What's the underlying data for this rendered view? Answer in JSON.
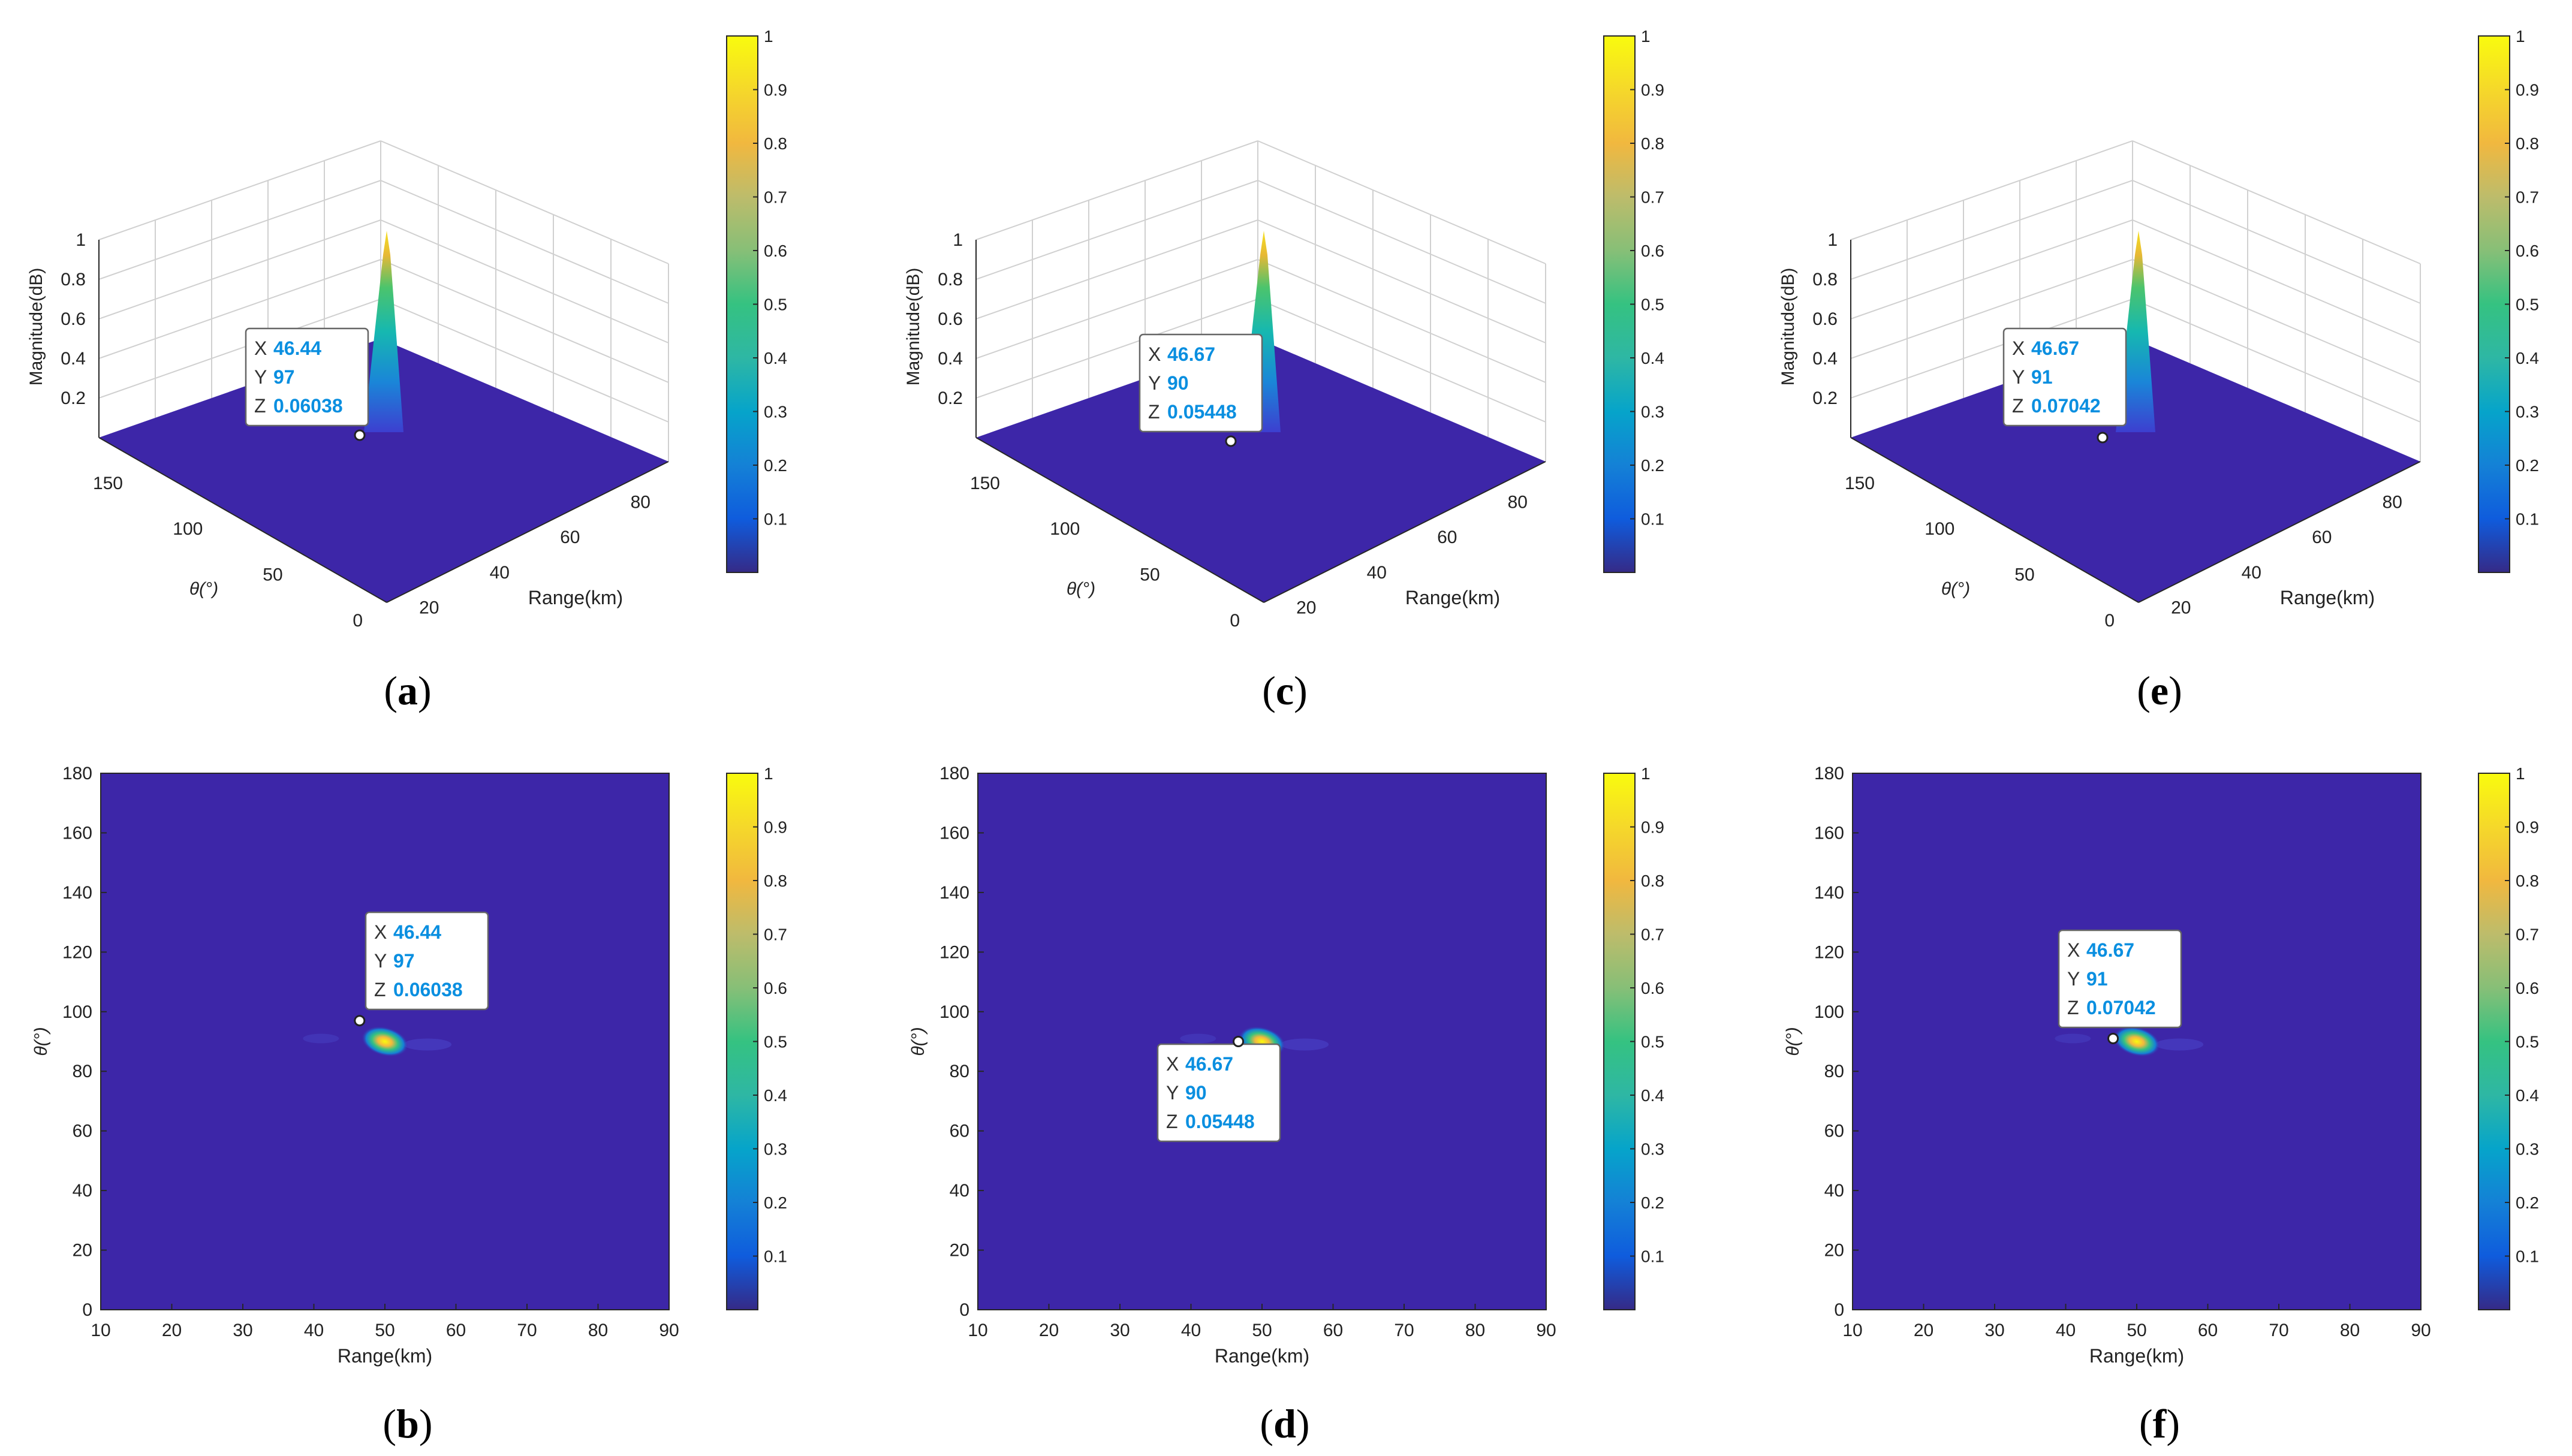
{
  "figure": {
    "colors": {
      "background": "#3d26a8",
      "axes_line": "#262626",
      "grid": "#d0d0d0",
      "tip_value": "#0a8fe0"
    },
    "colorbar": {
      "ticks": [
        "0.1",
        "0.2",
        "0.3",
        "0.4",
        "0.5",
        "0.6",
        "0.7",
        "0.8",
        "0.9",
        "1"
      ]
    },
    "panels_3d": [
      {
        "caption": "a",
        "xlabel": "Range(km)",
        "ylabel": "θ(°)",
        "zlabel": "Magnitude(dB)",
        "xticks": [
          "20",
          "40",
          "60",
          "80"
        ],
        "yticks": [
          "0",
          "50",
          "100",
          "150"
        ],
        "zticks": [
          "0.2",
          "0.4",
          "0.6",
          "0.8",
          "1"
        ],
        "datatip": {
          "x": "46.44",
          "y": "97",
          "z": "0.06038"
        }
      },
      {
        "caption": "c",
        "xlabel": "Range(km)",
        "ylabel": "θ(°)",
        "zlabel": "Magnitude(dB)",
        "xticks": [
          "20",
          "40",
          "60",
          "80"
        ],
        "yticks": [
          "0",
          "50",
          "100",
          "150"
        ],
        "zticks": [
          "0.2",
          "0.4",
          "0.6",
          "0.8",
          "1"
        ],
        "datatip": {
          "x": "46.67",
          "y": "90",
          "z": "0.05448"
        }
      },
      {
        "caption": "e",
        "xlabel": "Range(km)",
        "ylabel": "θ(°)",
        "zlabel": "Magnitude(dB)",
        "xticks": [
          "20",
          "40",
          "60",
          "80"
        ],
        "yticks": [
          "0",
          "50",
          "100",
          "150"
        ],
        "zticks": [
          "0.2",
          "0.4",
          "0.6",
          "0.8",
          "1"
        ],
        "datatip": {
          "x": "46.67",
          "y": "91",
          "z": "0.07042"
        }
      }
    ],
    "panels_2d": [
      {
        "caption": "b",
        "xlabel": "Range(km)",
        "ylabel": "θ(°)",
        "xticks": [
          "10",
          "20",
          "30",
          "40",
          "50",
          "60",
          "70",
          "80",
          "90"
        ],
        "yticks": [
          "0",
          "20",
          "40",
          "60",
          "80",
          "100",
          "120",
          "140",
          "160",
          "180"
        ],
        "datatip": {
          "x": "46.44",
          "y": "97",
          "z": "0.06038"
        }
      },
      {
        "caption": "d",
        "xlabel": "Range(km)",
        "ylabel": "θ(°)",
        "xticks": [
          "10",
          "20",
          "30",
          "40",
          "50",
          "60",
          "70",
          "80",
          "90"
        ],
        "yticks": [
          "0",
          "20",
          "40",
          "60",
          "80",
          "100",
          "120",
          "140",
          "160",
          "180"
        ],
        "datatip": {
          "x": "46.67",
          "y": "90",
          "z": "0.05448"
        }
      },
      {
        "caption": "f",
        "xlabel": "Range(km)",
        "ylabel": "θ(°)",
        "xticks": [
          "10",
          "20",
          "30",
          "40",
          "50",
          "60",
          "70",
          "80",
          "90"
        ],
        "yticks": [
          "0",
          "20",
          "40",
          "60",
          "80",
          "100",
          "120",
          "140",
          "160",
          "180"
        ],
        "datatip": {
          "x": "46.67",
          "y": "91",
          "z": "0.07042"
        }
      }
    ]
  },
  "chart_data": [
    {
      "panel": "a",
      "type": "surface3d",
      "title": "",
      "xlabel": "Range(km)",
      "ylabel": "θ(°)",
      "zlabel": "Magnitude(dB)",
      "xlim": [
        10,
        90
      ],
      "ylim": [
        0,
        180
      ],
      "zlim": [
        0,
        1
      ],
      "clim": [
        0,
        1
      ],
      "peak": {
        "x": 50,
        "y": 90,
        "z": 1
      },
      "datatip": {
        "x": 46.44,
        "y": 97,
        "z": 0.06038
      }
    },
    {
      "panel": "b",
      "type": "heatmap",
      "title": "",
      "xlabel": "Range(km)",
      "ylabel": "θ(°)",
      "xlim": [
        10,
        90
      ],
      "ylim": [
        0,
        180
      ],
      "clim": [
        0,
        1
      ],
      "peak": {
        "x": 50,
        "y": 90,
        "z": 1
      },
      "datatip": {
        "x": 46.44,
        "y": 97,
        "z": 0.06038
      }
    },
    {
      "panel": "c",
      "type": "surface3d",
      "title": "",
      "xlabel": "Range(km)",
      "ylabel": "θ(°)",
      "zlabel": "Magnitude(dB)",
      "xlim": [
        10,
        90
      ],
      "ylim": [
        0,
        180
      ],
      "zlim": [
        0,
        1
      ],
      "clim": [
        0,
        1
      ],
      "peak": {
        "x": 50,
        "y": 90,
        "z": 1
      },
      "datatip": {
        "x": 46.67,
        "y": 90,
        "z": 0.05448
      }
    },
    {
      "panel": "d",
      "type": "heatmap",
      "title": "",
      "xlabel": "Range(km)",
      "ylabel": "θ(°)",
      "xlim": [
        10,
        90
      ],
      "ylim": [
        0,
        180
      ],
      "clim": [
        0,
        1
      ],
      "peak": {
        "x": 50,
        "y": 90,
        "z": 1
      },
      "datatip": {
        "x": 46.67,
        "y": 90,
        "z": 0.05448
      }
    },
    {
      "panel": "e",
      "type": "surface3d",
      "title": "",
      "xlabel": "Range(km)",
      "ylabel": "θ(°)",
      "zlabel": "Magnitude(dB)",
      "xlim": [
        10,
        90
      ],
      "ylim": [
        0,
        180
      ],
      "zlim": [
        0,
        1
      ],
      "clim": [
        0,
        1
      ],
      "peak": {
        "x": 50,
        "y": 90,
        "z": 1
      },
      "datatip": {
        "x": 46.67,
        "y": 91,
        "z": 0.07042
      }
    },
    {
      "panel": "f",
      "type": "heatmap",
      "title": "",
      "xlabel": "Range(km)",
      "ylabel": "θ(°)",
      "xlim": [
        10,
        90
      ],
      "ylim": [
        0,
        180
      ],
      "clim": [
        0,
        1
      ],
      "peak": {
        "x": 50,
        "y": 90,
        "z": 1
      },
      "datatip": {
        "x": 46.67,
        "y": 91,
        "z": 0.07042
      }
    }
  ]
}
